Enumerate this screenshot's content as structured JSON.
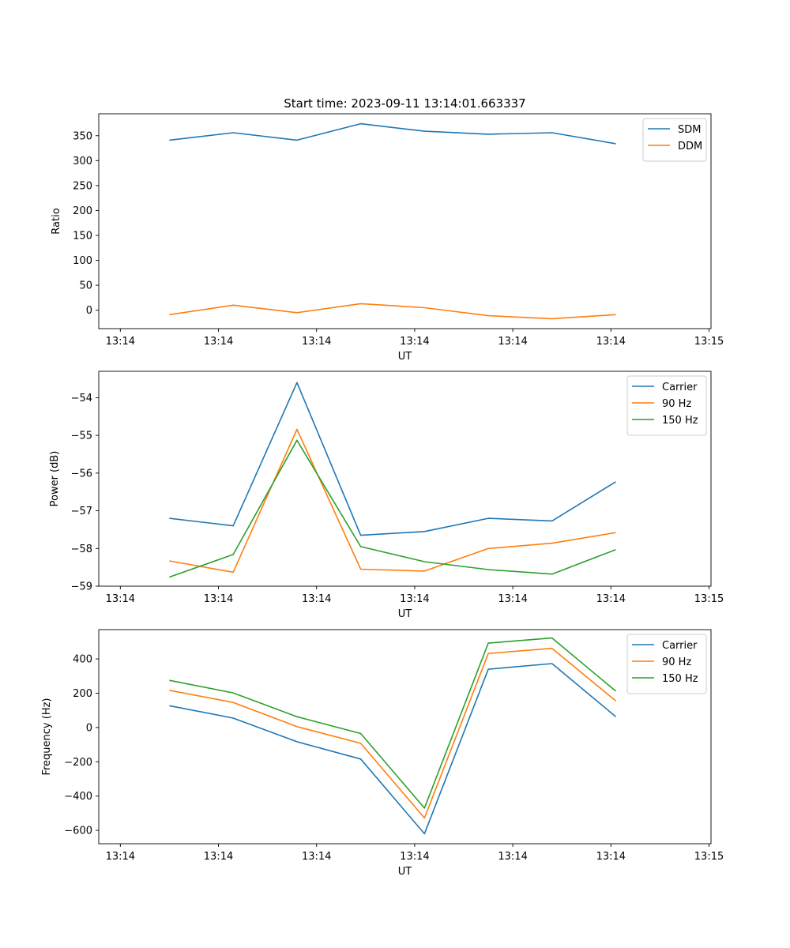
{
  "figure": {
    "title": "Start time: 2023-09-11 13:14:01.663337"
  },
  "colors": {
    "blue": "#1f77b4",
    "orange": "#ff7f0e",
    "green": "#2ca02c",
    "axis": "#000000",
    "legend_border": "#cccccc"
  },
  "chart_data": [
    {
      "type": "line",
      "id": "ratio",
      "title": "Start time: 2023-09-11 13:14:01.663337",
      "xlabel": "UT",
      "ylabel": "Ratio",
      "x_ticks": [
        "13:14",
        "13:14",
        "13:14",
        "13:14",
        "13:14",
        "13:14",
        "13:15"
      ],
      "x_tick_pos": [
        0,
        1,
        2,
        3,
        4,
        5,
        6
      ],
      "xlim": [
        -0.22,
        6.02
      ],
      "x": [
        0.5,
        1.15,
        1.8,
        2.45,
        3.1,
        3.75,
        4.4,
        5.05
      ],
      "ylim": [
        -37,
        394
      ],
      "y_ticks": [
        0,
        50,
        100,
        150,
        200,
        250,
        300,
        350
      ],
      "legend": "top-right",
      "series": [
        {
          "name": "SDM",
          "color": "#1f77b4",
          "values": [
            341,
            356,
            341,
            374,
            359,
            353,
            356,
            334
          ]
        },
        {
          "name": "DDM",
          "color": "#ff7f0e",
          "values": [
            -9,
            10,
            -5,
            13,
            5,
            -11,
            -17,
            -9
          ]
        }
      ]
    },
    {
      "type": "line",
      "id": "power",
      "title": "",
      "xlabel": "UT",
      "ylabel": "Power (dB)",
      "x_ticks": [
        "13:14",
        "13:14",
        "13:14",
        "13:14",
        "13:14",
        "13:14",
        "13:15"
      ],
      "x_tick_pos": [
        0,
        1,
        2,
        3,
        4,
        5,
        6
      ],
      "xlim": [
        -0.22,
        6.02
      ],
      "x": [
        0.5,
        1.15,
        1.8,
        2.45,
        3.1,
        3.75,
        4.4,
        5.05
      ],
      "ylim": [
        -59.0,
        -53.3
      ],
      "y_ticks": [
        -59,
        -58,
        -57,
        -56,
        -55,
        -54
      ],
      "legend": "top-right",
      "series": [
        {
          "name": "Carrier",
          "color": "#1f77b4",
          "values": [
            -57.2,
            -57.4,
            -53.6,
            -57.65,
            -57.55,
            -57.2,
            -57.27,
            -56.23
          ]
        },
        {
          "name": "90 Hz",
          "color": "#ff7f0e",
          "values": [
            -58.33,
            -58.63,
            -54.84,
            -58.55,
            -58.6,
            -58.0,
            -57.86,
            -57.58
          ]
        },
        {
          "name": "150 Hz",
          "color": "#2ca02c",
          "values": [
            -58.76,
            -58.16,
            -55.13,
            -57.95,
            -58.35,
            -58.56,
            -58.68,
            -58.03
          ]
        }
      ]
    },
    {
      "type": "line",
      "id": "frequency",
      "title": "",
      "xlabel": "UT",
      "ylabel": "Frequency (Hz)",
      "x_ticks": [
        "13:14",
        "13:14",
        "13:14",
        "13:14",
        "13:14",
        "13:14",
        "13:15"
      ],
      "x_tick_pos": [
        0,
        1,
        2,
        3,
        4,
        5,
        6
      ],
      "xlim": [
        -0.22,
        6.02
      ],
      "x": [
        0.5,
        1.15,
        1.8,
        2.45,
        3.1,
        3.75,
        4.4,
        5.05
      ],
      "ylim": [
        -678,
        571
      ],
      "y_ticks": [
        -600,
        -400,
        -200,
        0,
        200,
        400
      ],
      "legend": "top-right",
      "series": [
        {
          "name": "Carrier",
          "color": "#1f77b4",
          "values": [
            127,
            55,
            -83,
            -184,
            -620,
            340,
            373,
            63
          ]
        },
        {
          "name": "90 Hz",
          "color": "#ff7f0e",
          "values": [
            217,
            146,
            5,
            -92,
            -528,
            432,
            462,
            155
          ]
        },
        {
          "name": "150 Hz",
          "color": "#2ca02c",
          "values": [
            275,
            202,
            63,
            -35,
            -470,
            492,
            522,
            212
          ]
        }
      ]
    }
  ]
}
